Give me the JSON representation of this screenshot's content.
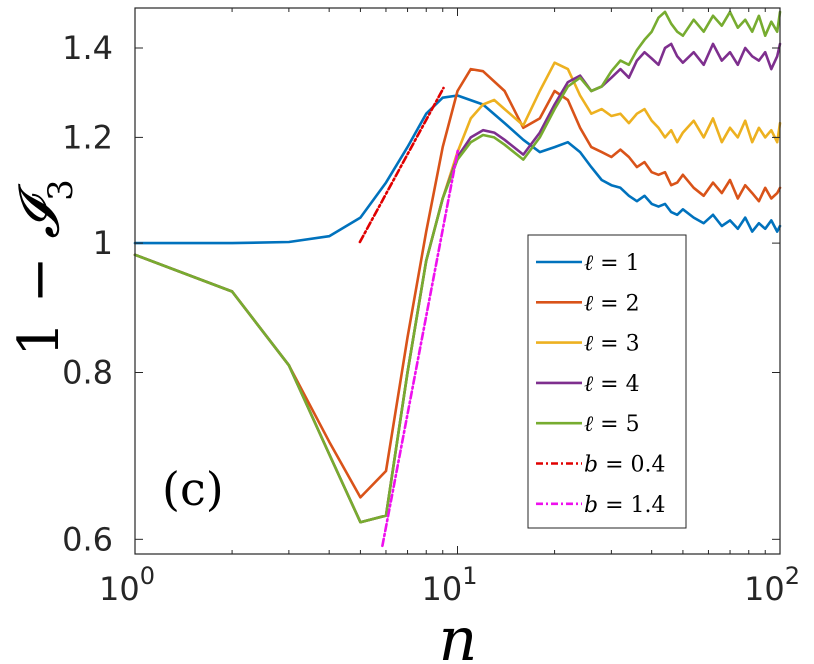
{
  "chart_data": {
    "type": "line",
    "title": "",
    "panel_label": "(c)",
    "xlabel": "n",
    "ylabel": "1 − 𝓘₃",
    "xscale": "log",
    "yscale": "log",
    "xlim": [
      1,
      100
    ],
    "ylim": [
      0.585,
      1.5
    ],
    "x_ticks": [
      {
        "base": "10",
        "exp": "0",
        "value": 1
      },
      {
        "base": "10",
        "exp": "1",
        "value": 10
      },
      {
        "base": "10",
        "exp": "2",
        "value": 100
      }
    ],
    "y_ticks": [
      {
        "label": "0.6",
        "value": 0.6
      },
      {
        "label": "0.8",
        "value": 0.8
      },
      {
        "label": "1",
        "value": 1.0
      },
      {
        "label": "1.2",
        "value": 1.2
      },
      {
        "label": "1.4",
        "value": 1.4
      }
    ],
    "legend_position": "lower-right",
    "series": [
      {
        "name": "ℓ = 1",
        "sym": "ℓ",
        "val": "1",
        "color": "#0072BD",
        "dash": "",
        "x": [
          1,
          2,
          3,
          4,
          5,
          6,
          7,
          8,
          9,
          10,
          12,
          14,
          16,
          18,
          20,
          22,
          24,
          26,
          28,
          30,
          32,
          34,
          36,
          38,
          40,
          42,
          44,
          46,
          48,
          50,
          54,
          58,
          62,
          66,
          70,
          74,
          78,
          82,
          86,
          90,
          94,
          98,
          100
        ],
        "y": [
          1.0,
          1.0,
          1.002,
          1.012,
          1.045,
          1.11,
          1.18,
          1.25,
          1.285,
          1.29,
          1.27,
          1.23,
          1.195,
          1.17,
          1.18,
          1.19,
          1.17,
          1.14,
          1.115,
          1.105,
          1.1,
          1.085,
          1.075,
          1.085,
          1.07,
          1.065,
          1.07,
          1.055,
          1.05,
          1.06,
          1.045,
          1.035,
          1.05,
          1.03,
          1.04,
          1.025,
          1.045,
          1.02,
          1.035,
          1.025,
          1.04,
          1.02,
          1.03
        ]
      },
      {
        "name": "ℓ = 2",
        "sym": "ℓ",
        "val": "2",
        "color": "#D95319",
        "dash": "",
        "x": [
          1,
          2,
          3,
          4,
          5,
          6,
          7,
          8,
          9,
          10,
          11,
          12,
          14,
          16,
          18,
          20,
          22,
          24,
          26,
          28,
          30,
          32,
          34,
          36,
          38,
          40,
          42,
          44,
          46,
          48,
          50,
          54,
          58,
          62,
          66,
          70,
          74,
          78,
          82,
          86,
          90,
          94,
          98,
          100
        ],
        "y": [
          0.98,
          0.92,
          0.81,
          0.71,
          0.645,
          0.675,
          0.85,
          1.02,
          1.18,
          1.3,
          1.35,
          1.345,
          1.3,
          1.22,
          1.24,
          1.3,
          1.28,
          1.22,
          1.18,
          1.17,
          1.16,
          1.175,
          1.16,
          1.14,
          1.15,
          1.13,
          1.125,
          1.13,
          1.105,
          1.11,
          1.125,
          1.1,
          1.085,
          1.11,
          1.09,
          1.115,
          1.08,
          1.105,
          1.09,
          1.075,
          1.1,
          1.08,
          1.09,
          1.1
        ]
      },
      {
        "name": "ℓ = 3",
        "sym": "ℓ",
        "val": "3",
        "color": "#EDB120",
        "dash": "",
        "x": [
          1,
          2,
          3,
          4,
          5,
          6,
          7,
          8,
          9,
          10,
          11,
          12,
          13,
          14,
          16,
          18,
          20,
          22,
          24,
          26,
          28,
          30,
          32,
          34,
          36,
          38,
          40,
          42,
          44,
          46,
          48,
          50,
          54,
          58,
          62,
          66,
          70,
          74,
          78,
          82,
          86,
          90,
          94,
          98,
          100
        ],
        "y": [
          0.98,
          0.92,
          0.81,
          0.695,
          0.618,
          0.625,
          0.8,
          0.97,
          1.08,
          1.17,
          1.24,
          1.27,
          1.28,
          1.26,
          1.225,
          1.3,
          1.365,
          1.35,
          1.29,
          1.25,
          1.26,
          1.245,
          1.25,
          1.23,
          1.25,
          1.26,
          1.235,
          1.22,
          1.2,
          1.215,
          1.19,
          1.21,
          1.235,
          1.2,
          1.24,
          1.19,
          1.22,
          1.2,
          1.235,
          1.19,
          1.22,
          1.2,
          1.215,
          1.19,
          1.23
        ]
      },
      {
        "name": "ℓ = 4",
        "sym": "ℓ",
        "val": "4",
        "color": "#7E2F8E",
        "dash": "",
        "x": [
          1,
          2,
          3,
          4,
          5,
          6,
          7,
          8,
          9,
          10,
          11,
          12,
          13,
          14,
          16,
          18,
          20,
          22,
          24,
          26,
          28,
          30,
          32,
          34,
          36,
          38,
          40,
          42,
          44,
          46,
          48,
          50,
          54,
          58,
          62,
          66,
          70,
          74,
          78,
          82,
          86,
          90,
          94,
          98,
          100
        ],
        "y": [
          0.98,
          0.92,
          0.81,
          0.695,
          0.618,
          0.625,
          0.8,
          0.97,
          1.08,
          1.16,
          1.2,
          1.215,
          1.21,
          1.195,
          1.165,
          1.21,
          1.27,
          1.32,
          1.335,
          1.3,
          1.31,
          1.33,
          1.35,
          1.33,
          1.37,
          1.39,
          1.375,
          1.36,
          1.4,
          1.41,
          1.38,
          1.365,
          1.39,
          1.36,
          1.41,
          1.37,
          1.39,
          1.36,
          1.4,
          1.38,
          1.37,
          1.39,
          1.35,
          1.38,
          1.41
        ]
      },
      {
        "name": "ℓ = 5",
        "sym": "ℓ",
        "val": "5",
        "color": "#77AC30",
        "dash": "",
        "x": [
          1,
          2,
          3,
          4,
          5,
          6,
          7,
          8,
          9,
          10,
          11,
          12,
          13,
          14,
          16,
          18,
          20,
          22,
          24,
          26,
          28,
          30,
          32,
          34,
          36,
          38,
          40,
          42,
          44,
          46,
          48,
          50,
          54,
          58,
          62,
          66,
          70,
          74,
          78,
          82,
          86,
          90,
          94,
          98,
          100
        ],
        "y": [
          0.98,
          0.92,
          0.81,
          0.695,
          0.618,
          0.625,
          0.8,
          0.97,
          1.08,
          1.155,
          1.19,
          1.205,
          1.2,
          1.185,
          1.155,
          1.2,
          1.26,
          1.31,
          1.33,
          1.3,
          1.31,
          1.345,
          1.37,
          1.36,
          1.395,
          1.42,
          1.44,
          1.475,
          1.49,
          1.46,
          1.44,
          1.43,
          1.47,
          1.44,
          1.48,
          1.455,
          1.49,
          1.45,
          1.47,
          1.44,
          1.48,
          1.43,
          1.465,
          1.44,
          1.49
        ]
      },
      {
        "name": "b = 0.4",
        "sym": "b",
        "val": "0.4",
        "color": "#E00000",
        "dash": "7 3 2 3",
        "x": [
          4.98,
          9.05
        ],
        "y": [
          1.0019,
          1.3067
        ]
      },
      {
        "name": "b = 1.4",
        "sym": "b",
        "val": "1.4",
        "color": "#EE10EE",
        "dash": "7 3 2 3",
        "x": [
          5.85,
          10.05
        ],
        "y": [
          0.5933,
          1.1772
        ]
      }
    ]
  }
}
